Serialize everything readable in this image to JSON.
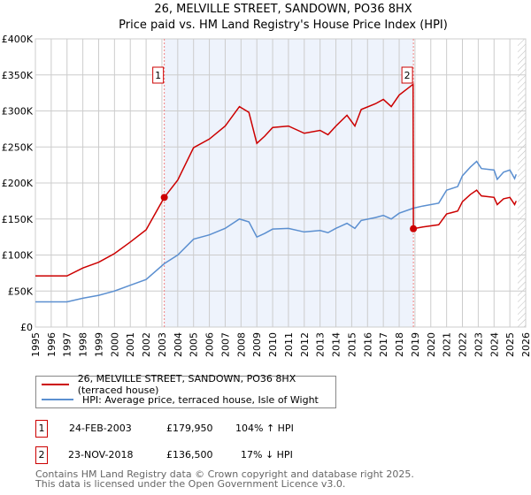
{
  "title": "26, MELVILLE STREET, SANDOWN, PO36 8HX",
  "subtitle": "Price paid vs. HM Land Registry's House Price Index (HPI)",
  "chart_data": {
    "type": "line",
    "title": "26, MELVILLE STREET, SANDOWN, PO36 8HX — Price paid vs. HM Land Registry's House Price Index (HPI)",
    "xlim": [
      1995,
      2026
    ],
    "ylim": [
      0,
      400000
    ],
    "x_ticks": [
      "1995",
      "1996",
      "1997",
      "1998",
      "1999",
      "2000",
      "2001",
      "2002",
      "2003",
      "2004",
      "2005",
      "2006",
      "2007",
      "2008",
      "2009",
      "2010",
      "2011",
      "2012",
      "2013",
      "2014",
      "2015",
      "2016",
      "2017",
      "2018",
      "2019",
      "2020",
      "2021",
      "2022",
      "2023",
      "2024",
      "2025",
      "2026"
    ],
    "y_ticks": [
      {
        "v": 0,
        "l": "£0"
      },
      {
        "v": 50000,
        "l": "£50K"
      },
      {
        "v": 100000,
        "l": "£100K"
      },
      {
        "v": 150000,
        "l": "£150K"
      },
      {
        "v": 200000,
        "l": "£200K"
      },
      {
        "v": 250000,
        "l": "£250K"
      },
      {
        "v": 300000,
        "l": "£300K"
      },
      {
        "v": 350000,
        "l": "£350K"
      },
      {
        "v": 400000,
        "l": "£400K"
      }
    ],
    "grid": true,
    "shaded_range": [
      2003.15,
      2018.9
    ],
    "hatched_from": 2025.5,
    "series": [
      {
        "name": "26, MELVILLE STREET, SANDOWN, PO36 8HX (terraced house)",
        "color": "#cc0000",
        "x": [
          1995,
          1996,
          1997,
          1998,
          1999,
          2000,
          2001,
          2002,
          2003.15,
          2004,
          2005,
          2006,
          2007,
          2007.9,
          2008.5,
          2009.0,
          2009.5,
          2010,
          2011,
          2012,
          2013,
          2013.5,
          2014,
          2014.7,
          2015.2,
          2015.6,
          2016.5,
          2017,
          2017.5,
          2018,
          2018.88,
          2018.9,
          2019.5,
          2020.5,
          2021,
          2021.7,
          2022,
          2022.5,
          2022.9,
          2023.2,
          2024,
          2024.2,
          2024.6,
          2025.0,
          2025.3,
          2025.4
        ],
        "y": [
          71000,
          71000,
          71000,
          82000,
          90000,
          102000,
          118000,
          135000,
          179950,
          204000,
          249000,
          261000,
          279000,
          306000,
          298000,
          255000,
          265000,
          277000,
          279000,
          269000,
          273000,
          267000,
          279000,
          294000,
          279000,
          302000,
          310000,
          316000,
          306000,
          322000,
          337000,
          136500,
          139000,
          142000,
          157000,
          161000,
          174000,
          184000,
          190000,
          182000,
          180000,
          170000,
          178000,
          180000,
          170000,
          175000
        ]
      },
      {
        "name": "HPI: Average price, terraced house, Isle of Wight",
        "color": "#5b8fd0",
        "x": [
          1995,
          1996,
          1997,
          1998,
          1999,
          2000,
          2001,
          2002,
          2003.15,
          2004,
          2005,
          2006,
          2007,
          2007.9,
          2008.5,
          2009.0,
          2009.5,
          2010,
          2011,
          2012,
          2013,
          2013.5,
          2014,
          2014.7,
          2015.2,
          2015.6,
          2016.5,
          2017,
          2017.5,
          2018,
          2018.9,
          2019.5,
          2020.5,
          2021,
          2021.7,
          2022,
          2022.5,
          2022.9,
          2023.2,
          2024,
          2024.2,
          2024.6,
          2025.0,
          2025.3,
          2025.4
        ],
        "y": [
          35000,
          35000,
          35000,
          40000,
          44000,
          50000,
          58000,
          66000,
          88000,
          100000,
          122000,
          128000,
          137000,
          150000,
          146000,
          125000,
          130000,
          136000,
          137000,
          132000,
          134000,
          131000,
          137000,
          144000,
          137000,
          148000,
          152000,
          155000,
          150000,
          158000,
          165000,
          168000,
          172000,
          190000,
          195000,
          210000,
          222000,
          230000,
          220000,
          218000,
          205000,
          215000,
          218000,
          206000,
          212000
        ]
      }
    ],
    "annotations": [
      {
        "label": "1",
        "x": 2003.15,
        "y": 179950
      },
      {
        "label": "2",
        "x": 2018.9,
        "y": 136500
      }
    ]
  },
  "legend": {
    "red": "26, MELVILLE STREET, SANDOWN, PO36 8HX (terraced house)",
    "blue": "HPI: Average price, terraced house, Isle of Wight"
  },
  "sales": [
    {
      "n": "1",
      "date": "24-FEB-2003",
      "price": "£179,950",
      "hpi": "104% ↑ HPI"
    },
    {
      "n": "2",
      "date": "23-NOV-2018",
      "price": "£136,500",
      "hpi": "17% ↓ HPI"
    }
  ],
  "footer": [
    "Contains HM Land Registry data © Crown copyright and database right 2025.",
    "This data is licensed under the Open Government Licence v3.0."
  ]
}
